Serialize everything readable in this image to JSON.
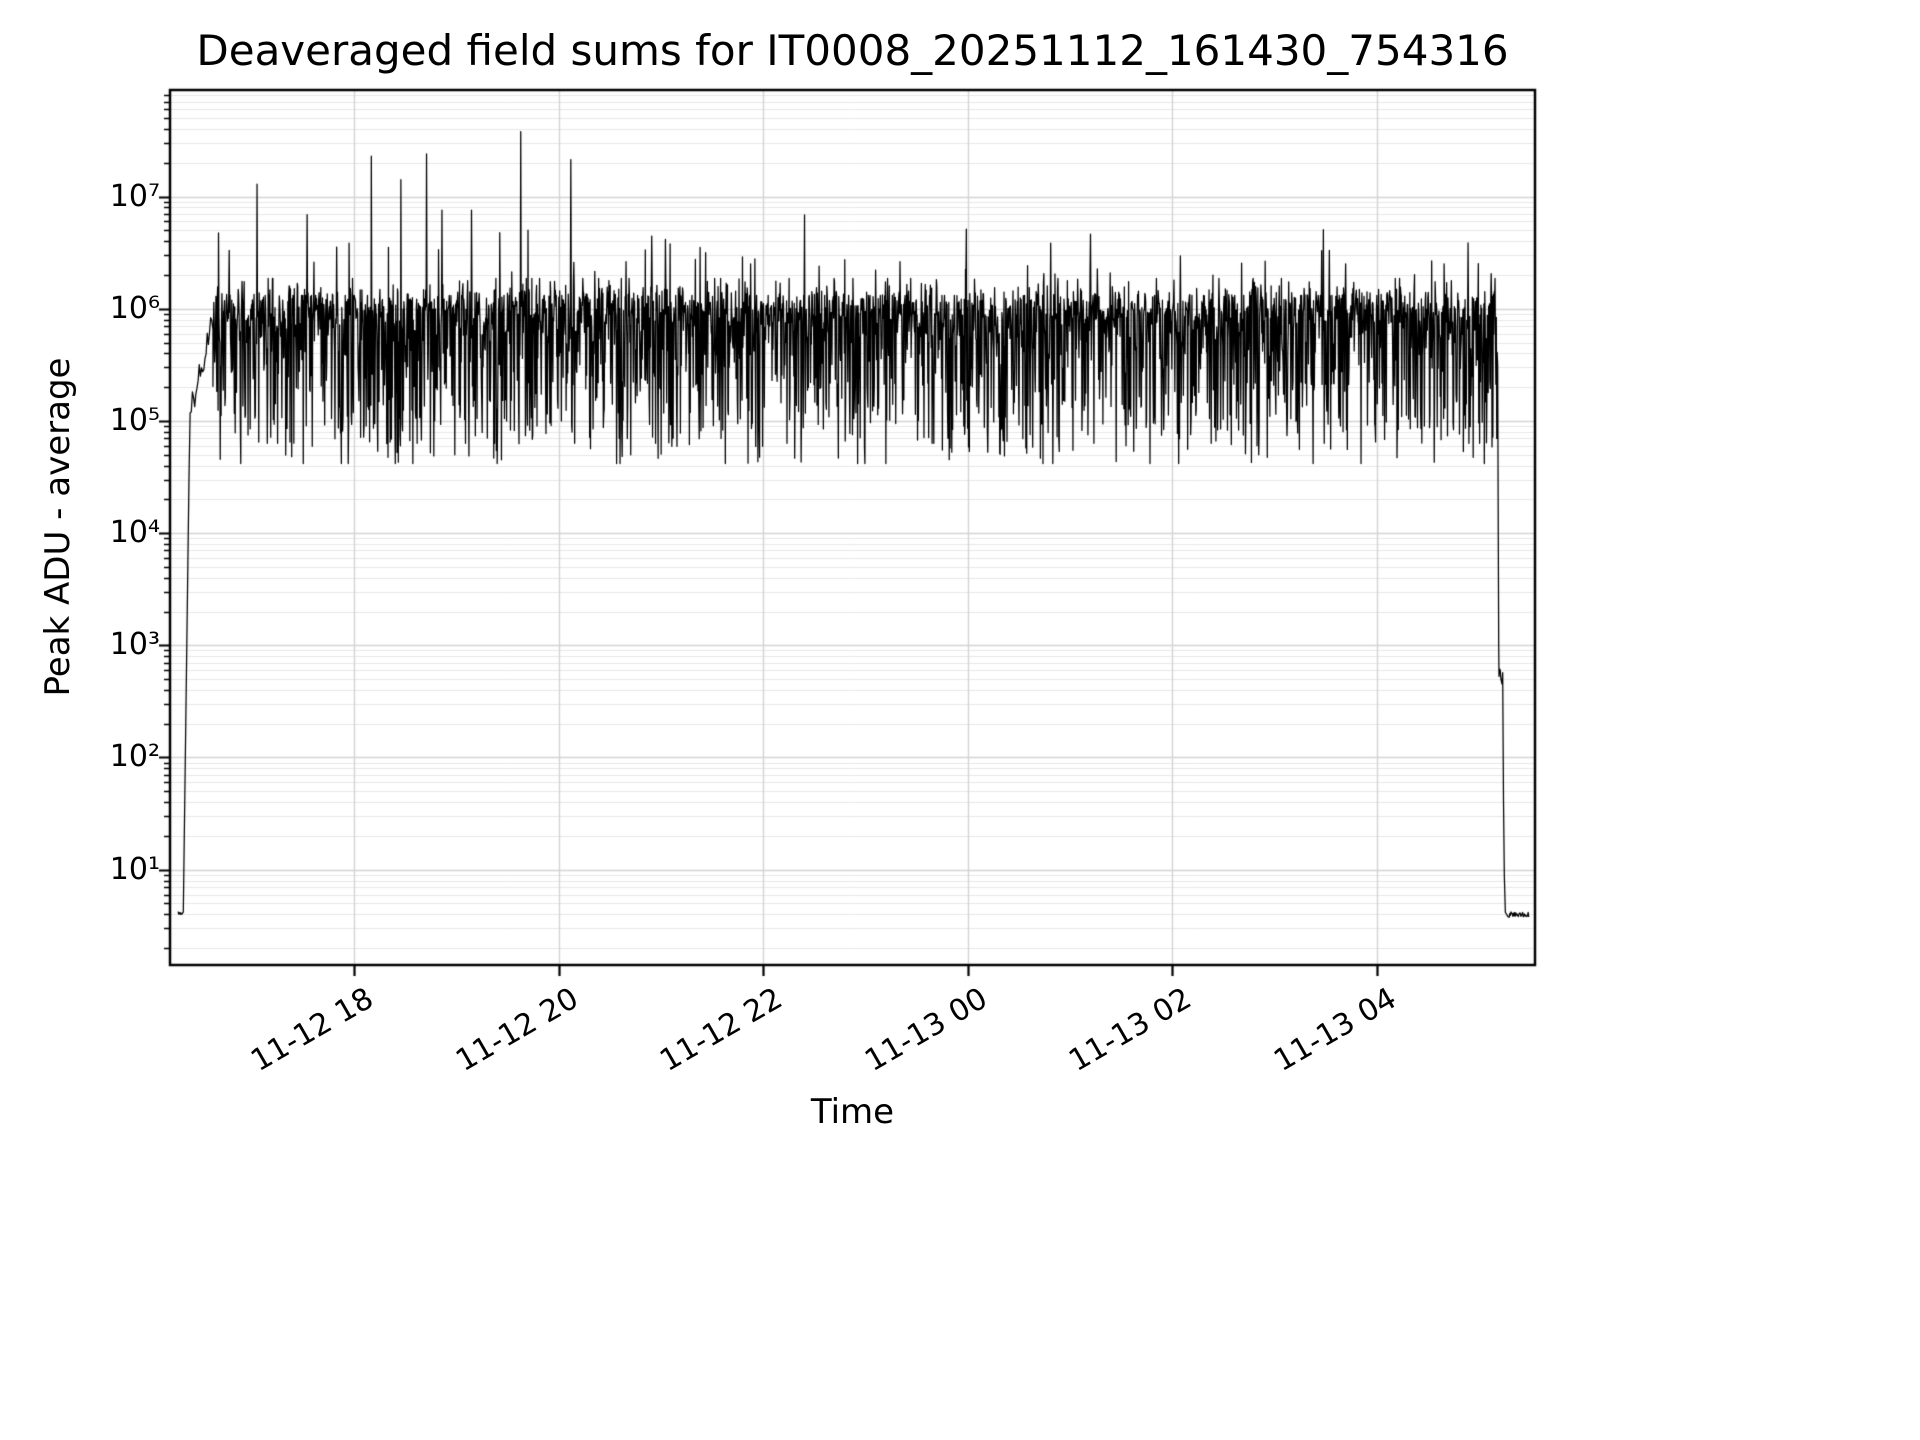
{
  "chart_data": {
    "type": "line",
    "title": "Deaveraged field sums for IT0008_20251112_161430_754316",
    "xlabel": "Time",
    "ylabel": "Peak ADU - average",
    "x_tick_labels": [
      "11-12 18",
      "11-12 20",
      "11-12 22",
      "11-13 00",
      "11-13 02",
      "11-13 04"
    ],
    "x_tick_hours": [
      2,
      4,
      6,
      8,
      10,
      12
    ],
    "x_time_origin": "11-12 16:00",
    "x_range_hours": [
      0.2,
      13.55
    ],
    "y_scale": "log",
    "y_tick_labels": [
      "10¹",
      "10²",
      "10³",
      "10⁴",
      "10⁵",
      "10⁶",
      "10⁷"
    ],
    "y_tick_exponents": [
      1,
      2,
      3,
      4,
      5,
      6,
      7
    ],
    "y_range_log10": [
      0.15,
      7.95
    ],
    "grid": {
      "major": true,
      "minor": true,
      "vertical_at_x_ticks": true
    },
    "legend": null,
    "series": [
      {
        "name": "peak-adu-minus-average",
        "color": "#000000",
        "segments": {
          "start_flat": {
            "t": [
              0.28,
              0.33
            ],
            "log10": 0.62
          },
          "rise": {
            "t": [
              0.33,
              0.62
            ],
            "log10_from": 0.62,
            "log10_to": 5.9
          },
          "plateau": {
            "t": [
              0.62,
              13.18
            ],
            "log10_top_envelope": 6.27,
            "log10_typical_high": 6.0,
            "log10_typical_low": 5.0,
            "log10_min_dips": 4.62
          },
          "fall": {
            "t": [
              13.18,
              13.28
            ],
            "log10_from": 5.8,
            "step_log10": 2.7,
            "log10_to": 0.62
          },
          "end_flat": {
            "t": [
              13.28,
              13.49
            ],
            "log10": 0.6
          }
        },
        "spikes": [
          {
            "t": 0.78,
            "log10": 6.52
          },
          {
            "t": 1.05,
            "log10": 7.11
          },
          {
            "t": 1.54,
            "log10": 6.84
          },
          {
            "t": 1.83,
            "log10": 6.55
          },
          {
            "t": 2.17,
            "log10": 7.36
          },
          {
            "t": 2.46,
            "log10": 7.15
          },
          {
            "t": 2.71,
            "log10": 7.38
          },
          {
            "t": 2.86,
            "log10": 6.88
          },
          {
            "t": 3.15,
            "log10": 6.88
          },
          {
            "t": 3.63,
            "log10": 7.58
          },
          {
            "t": 3.7,
            "log10": 6.7
          },
          {
            "t": 4.12,
            "log10": 7.33
          },
          {
            "t": 4.66,
            "log10": 6.42
          },
          {
            "t": 5.34,
            "log10": 6.44
          },
          {
            "t": 5.88,
            "log10": 6.4
          },
          {
            "t": 6.55,
            "log10": 6.38
          },
          {
            "t": 7.34,
            "log10": 6.42
          },
          {
            "t": 7.98,
            "log10": 6.35
          },
          {
            "t": 9.2,
            "log10": 6.32
          },
          {
            "t": 10.4,
            "log10": 6.3
          },
          {
            "t": 11.54,
            "log10": 6.52
          },
          {
            "t": 11.7,
            "log10": 6.4
          },
          {
            "t": 12.66,
            "log10": 6.4
          }
        ]
      }
    ]
  },
  "colors": {
    "line": "#000000",
    "grid_major": "#d4d4d4",
    "grid_minor": "#e7e7e7",
    "spine": "#000000",
    "tick": "#000000",
    "background": "#ffffff",
    "text": "#000000"
  }
}
